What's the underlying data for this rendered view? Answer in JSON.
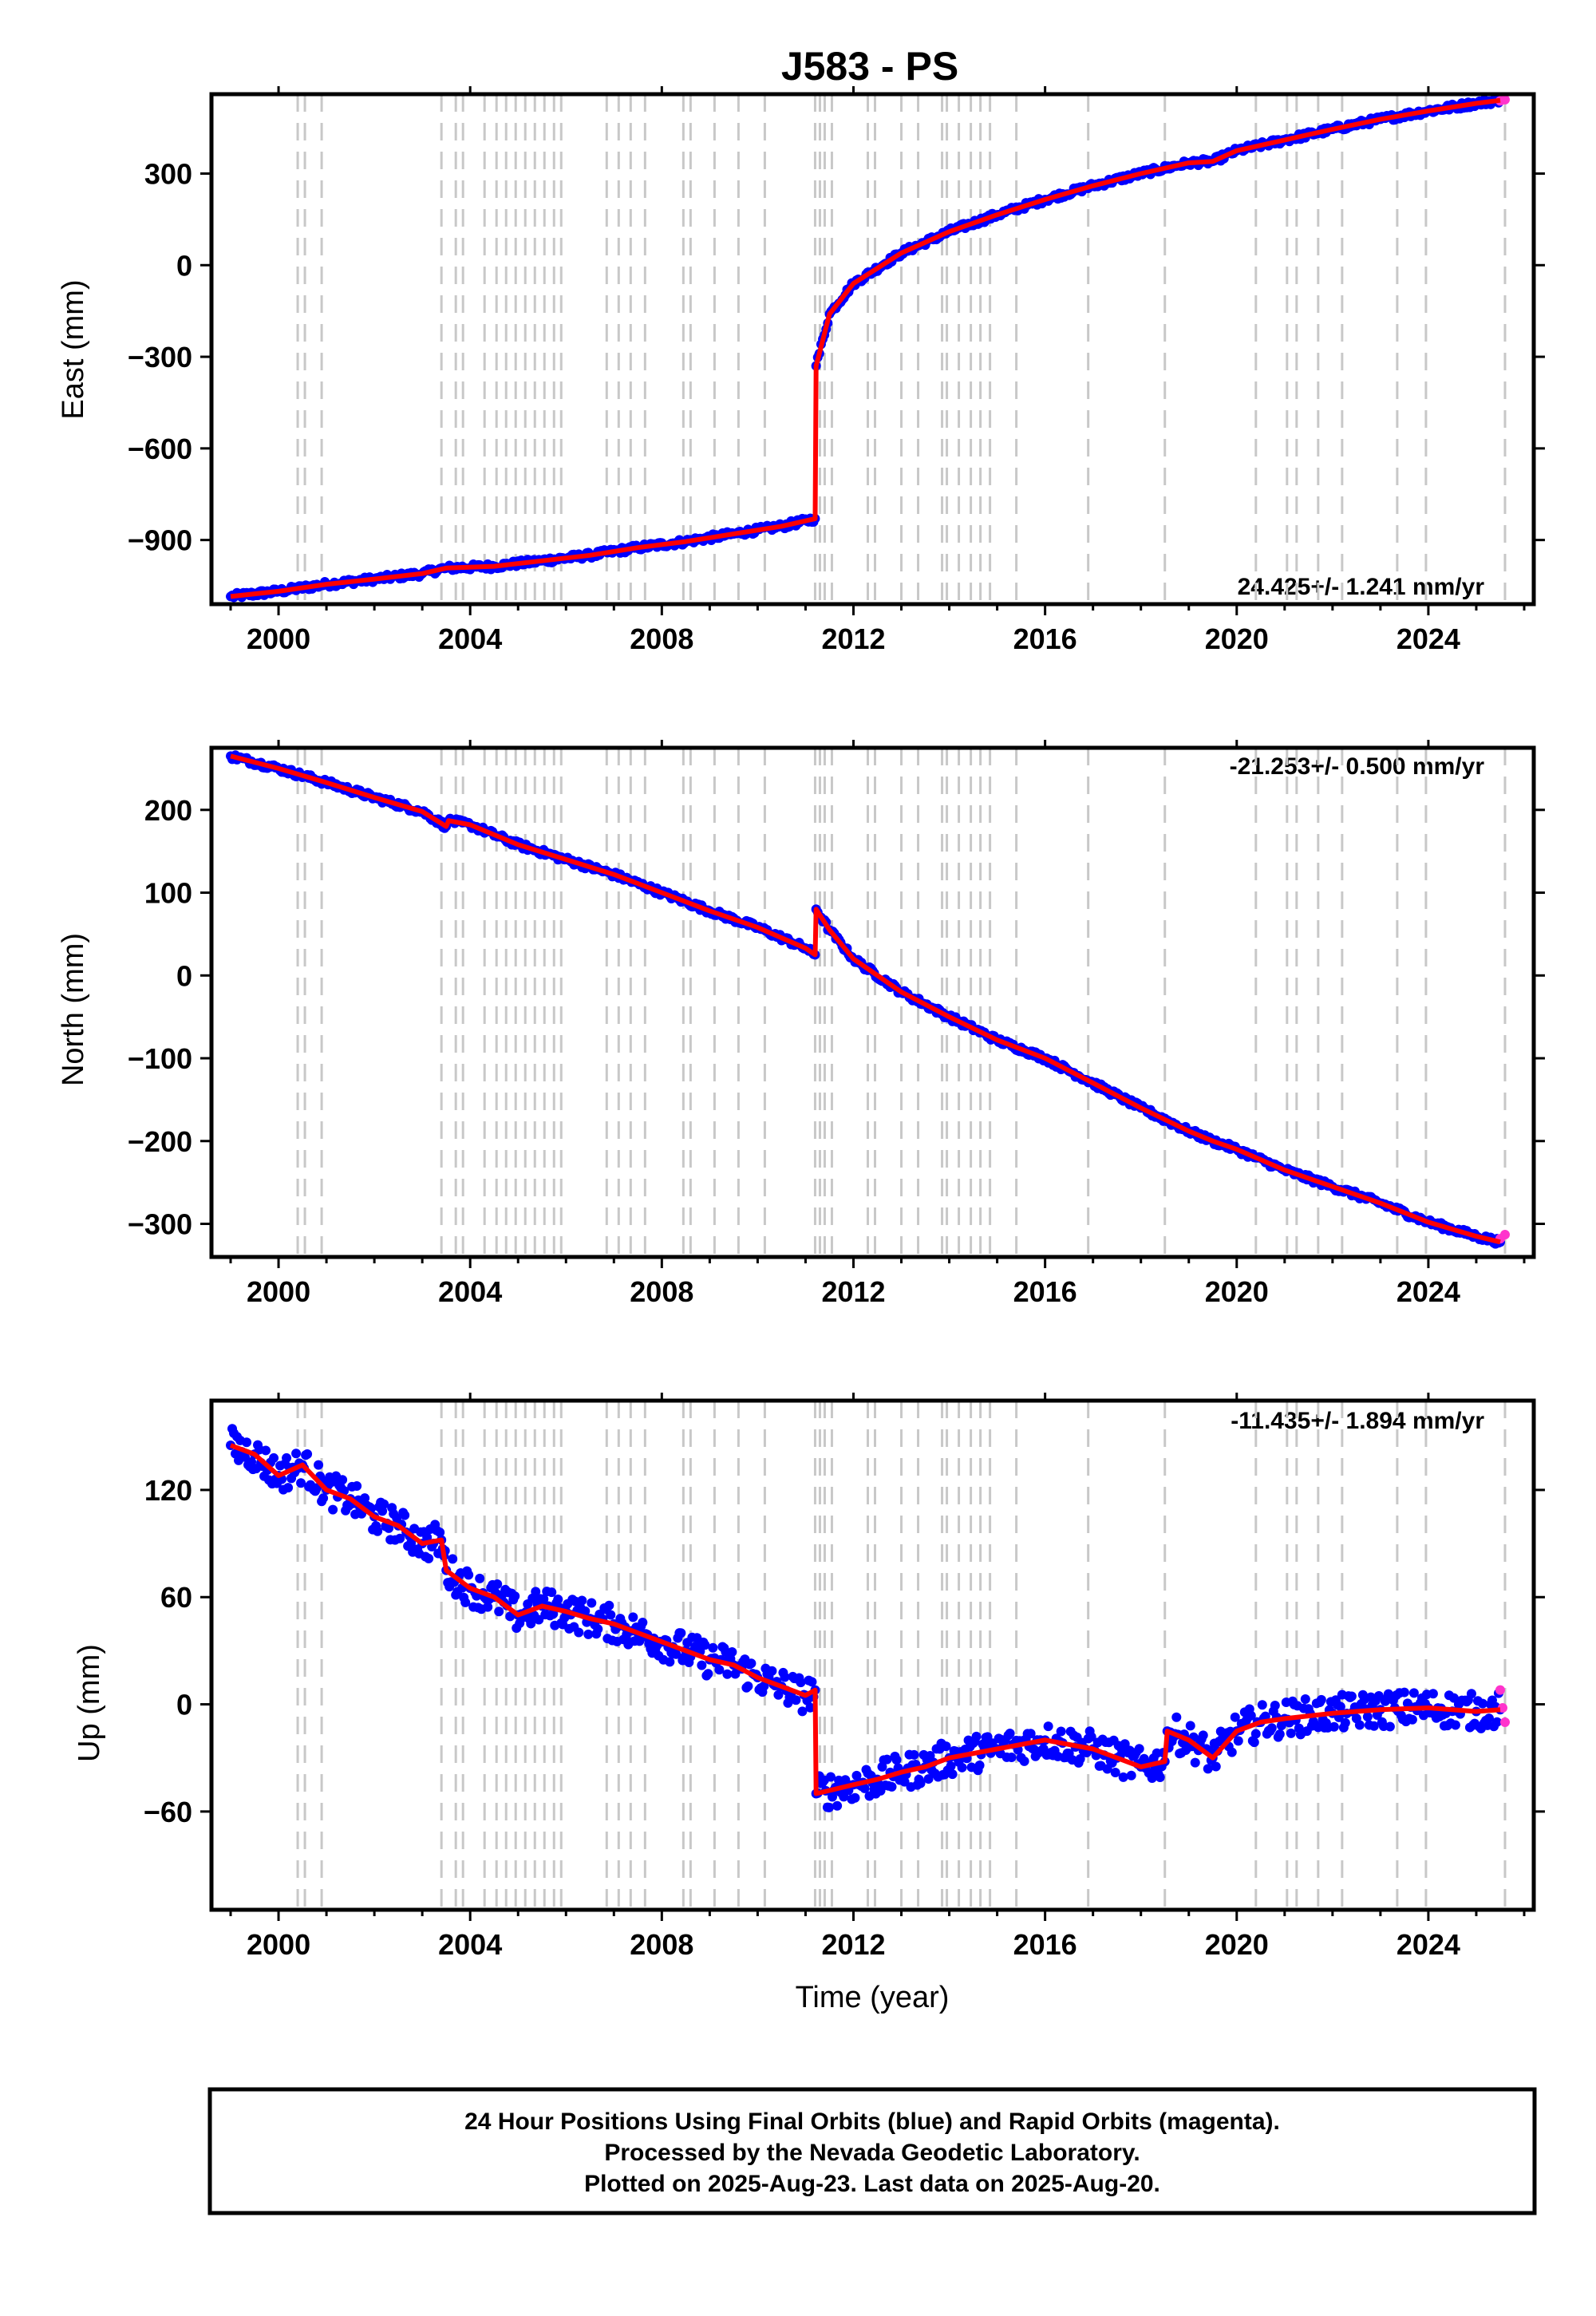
{
  "title": "J583 - PS",
  "xlabel": "Time (year)",
  "footer": {
    "line1": "24 Hour Positions Using Final Orbits (blue) and Rapid Orbits (magenta).",
    "line2": "Processed by the Nevada Geodetic Laboratory.",
    "line3": "Plotted on 2025-Aug-23. Last data on 2025-Aug-20."
  },
  "colors": {
    "final_orbits": "#0000ff",
    "rapid_orbits": "#ff33cc",
    "model": "#ff0000",
    "event_lines": "#c8c8c8"
  },
  "chart_data": [
    {
      "type": "scatter",
      "name": "east",
      "ylabel": "East (mm)",
      "rate_label": "24.425+/- 1.241 mm/yr",
      "xlim": [
        1998.6,
        2026.2
      ],
      "ylim": [
        -1110,
        560
      ],
      "x_ticks": [
        2000,
        2004,
        2008,
        2012,
        2016,
        2020,
        2024
      ],
      "y_ticks": [
        300,
        0,
        -300,
        -600,
        -900
      ],
      "y_tick_labels": [
        "300",
        "0",
        "−300",
        "−600",
        "−900"
      ],
      "series": [
        {
          "role": "final",
          "points": [
            [
              1999.0,
              -1085
            ],
            [
              2000.0,
              -1068
            ],
            [
              2001.0,
              -1045
            ],
            [
              2002.0,
              -1028
            ],
            [
              2003.0,
              -1010
            ],
            [
              2003.5,
              -992
            ],
            [
              2004.5,
              -986
            ],
            [
              2005.5,
              -968
            ],
            [
              2006.5,
              -950
            ],
            [
              2007.5,
              -925
            ],
            [
              2008.5,
              -905
            ],
            [
              2009.5,
              -880
            ],
            [
              2010.5,
              -855
            ],
            [
              2011.2,
              -830
            ],
            [
              2011.22,
              -330
            ],
            [
              2011.5,
              -160
            ],
            [
              2012.0,
              -60
            ],
            [
              2013.0,
              40
            ],
            [
              2014.0,
              110
            ],
            [
              2015.0,
              165
            ],
            [
              2016.0,
              215
            ],
            [
              2017.0,
              260
            ],
            [
              2018.0,
              300
            ],
            [
              2019.0,
              335
            ],
            [
              2019.5,
              340
            ],
            [
              2020.0,
              375
            ],
            [
              2021.0,
              410
            ],
            [
              2022.0,
              445
            ],
            [
              2023.0,
              478
            ],
            [
              2024.0,
              505
            ],
            [
              2025.0,
              530
            ],
            [
              2025.5,
              540
            ]
          ]
        },
        {
          "role": "rapid",
          "points": [
            [
              2025.5,
              538
            ],
            [
              2025.6,
              542
            ]
          ]
        }
      ]
    },
    {
      "type": "scatter",
      "name": "north",
      "ylabel": "North (mm)",
      "rate_label": "-21.253+/- 0.500 mm/yr",
      "xlim": [
        1998.6,
        2026.2
      ],
      "ylim": [
        -340,
        275
      ],
      "x_ticks": [
        2000,
        2004,
        2008,
        2012,
        2016,
        2020,
        2024
      ],
      "y_ticks": [
        200,
        100,
        0,
        -100,
        -200,
        -300
      ],
      "y_tick_labels": [
        "200",
        "100",
        "0",
        "−100",
        "−200",
        "−300"
      ],
      "series": [
        {
          "role": "final",
          "points": [
            [
              1999.0,
              265
            ],
            [
              2000.0,
              250
            ],
            [
              2001.0,
              233
            ],
            [
              2002.0,
              215
            ],
            [
              2003.0,
              198
            ],
            [
              2003.5,
              180
            ],
            [
              2003.55,
              187
            ],
            [
              2004.0,
              182
            ],
            [
              2005.0,
              158
            ],
            [
              2006.0,
              140
            ],
            [
              2007.0,
              122
            ],
            [
              2008.0,
              100
            ],
            [
              2009.0,
              78
            ],
            [
              2010.0,
              58
            ],
            [
              2011.0,
              33
            ],
            [
              2011.2,
              25
            ],
            [
              2011.22,
              80
            ],
            [
              2011.5,
              55
            ],
            [
              2012.0,
              20
            ],
            [
              2013.0,
              -20
            ],
            [
              2014.0,
              -50
            ],
            [
              2015.0,
              -78
            ],
            [
              2016.0,
              -100
            ],
            [
              2017.0,
              -130
            ],
            [
              2018.0,
              -160
            ],
            [
              2019.0,
              -188
            ],
            [
              2019.5,
              -200
            ],
            [
              2020.0,
              -210
            ],
            [
              2021.0,
              -235
            ],
            [
              2022.0,
              -255
            ],
            [
              2023.0,
              -275
            ],
            [
              2024.0,
              -298
            ],
            [
              2025.0,
              -315
            ],
            [
              2025.5,
              -322
            ]
          ]
        },
        {
          "role": "rapid",
          "points": [
            [
              2025.5,
              -318
            ],
            [
              2025.6,
              -313
            ]
          ]
        }
      ]
    },
    {
      "type": "scatter",
      "name": "up",
      "ylabel": "Up (mm)",
      "rate_label": "-11.435+/- 1.894 mm/yr",
      "xlim": [
        1998.6,
        2026.2
      ],
      "ylim": [
        -115,
        170
      ],
      "x_ticks": [
        2000,
        2004,
        2008,
        2012,
        2016,
        2020,
        2024
      ],
      "y_ticks": [
        120,
        60,
        0,
        -60
      ],
      "y_tick_labels": [
        "120",
        "60",
        "0",
        "−60"
      ],
      "series": [
        {
          "role": "final",
          "points": [
            [
              1999.0,
              145
            ],
            [
              1999.5,
              140
            ],
            [
              2000.0,
              128
            ],
            [
              2000.5,
              134
            ],
            [
              2001.0,
              120
            ],
            [
              2001.5,
              115
            ],
            [
              2002.0,
              105
            ],
            [
              2002.5,
              100
            ],
            [
              2003.0,
              90
            ],
            [
              2003.4,
              92
            ],
            [
              2003.5,
              75
            ],
            [
              2004.0,
              65
            ],
            [
              2004.5,
              60
            ],
            [
              2005.0,
              50
            ],
            [
              2005.5,
              55
            ],
            [
              2006.0,
              52
            ],
            [
              2006.5,
              48
            ],
            [
              2007.0,
              45
            ],
            [
              2007.5,
              40
            ],
            [
              2008.0,
              35
            ],
            [
              2008.5,
              30
            ],
            [
              2009.0,
              25
            ],
            [
              2009.5,
              22
            ],
            [
              2010.0,
              15
            ],
            [
              2010.5,
              10
            ],
            [
              2011.0,
              5
            ],
            [
              2011.2,
              8
            ],
            [
              2011.22,
              -50
            ],
            [
              2012.0,
              -45
            ],
            [
              2012.5,
              -42
            ],
            [
              2013.0,
              -38
            ],
            [
              2013.5,
              -35
            ],
            [
              2014.0,
              -30
            ],
            [
              2015.0,
              -25
            ],
            [
              2016.0,
              -20
            ],
            [
              2017.0,
              -25
            ],
            [
              2017.5,
              -30
            ],
            [
              2018.0,
              -35
            ],
            [
              2018.5,
              -32
            ],
            [
              2018.55,
              -15
            ],
            [
              2019.0,
              -20
            ],
            [
              2019.5,
              -30
            ],
            [
              2020.0,
              -15
            ],
            [
              2020.5,
              -10
            ],
            [
              2021.0,
              -8
            ],
            [
              2022.0,
              -5
            ],
            [
              2023.0,
              -3
            ],
            [
              2024.0,
              -2
            ],
            [
              2025.0,
              -4
            ],
            [
              2025.5,
              -3
            ]
          ]
        },
        {
          "role": "rapid",
          "points": [
            [
              2025.5,
              8
            ],
            [
              2025.55,
              -2
            ],
            [
              2025.6,
              -10
            ]
          ]
        }
      ]
    }
  ],
  "event_years": [
    2000.4,
    2000.55,
    2000.9,
    2003.4,
    2003.7,
    2003.85,
    2004.3,
    2004.55,
    2004.75,
    2004.95,
    2005.15,
    2005.35,
    2005.55,
    2005.75,
    2005.9,
    2006.85,
    2007.1,
    2007.35,
    2007.65,
    2008.45,
    2008.6,
    2009.1,
    2009.6,
    2010.15,
    2011.2,
    2011.3,
    2011.4,
    2011.55,
    2012.3,
    2012.45,
    2013.0,
    2013.35,
    2013.85,
    2013.95,
    2014.2,
    2014.45,
    2014.65,
    2014.85,
    2015.4,
    2016.9,
    2018.5,
    2020.4,
    2021.05,
    2021.25,
    2021.7,
    2022.2,
    2023.35,
    2023.95,
    2025.6
  ]
}
